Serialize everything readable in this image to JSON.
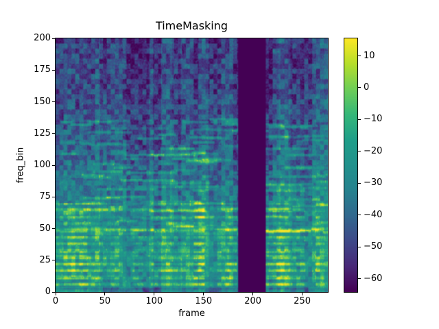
{
  "figure": {
    "title": "TimeMasking",
    "xlabel": "frame",
    "ylabel": "freq_bin",
    "background": "#ffffff"
  },
  "axes": {
    "x_ticks": [
      0,
      50,
      100,
      150,
      200,
      250
    ],
    "y_ticks": [
      0,
      25,
      50,
      75,
      100,
      125,
      150,
      175,
      200
    ],
    "x_max": 276,
    "y_max": 200
  },
  "colorbar": {
    "position": "right",
    "ticks": [
      10,
      0,
      -10,
      -20,
      -30,
      -40,
      -50,
      -60
    ],
    "vmin": -64.2,
    "vmax": 15.5,
    "colormap": "viridis",
    "stops": [
      "#440154",
      "#482878",
      "#3e4989",
      "#31688e",
      "#26828e",
      "#21918c",
      "#1f9e89",
      "#35b779",
      "#6ece58",
      "#b5de2b",
      "#fde725"
    ]
  },
  "chart_data": {
    "type": "heatmap",
    "title": "TimeMasking",
    "xlabel": "frame",
    "ylabel": "freq_bin",
    "x_range": [
      0,
      276
    ],
    "y_range": [
      0,
      200
    ],
    "value_range": [
      -64.2,
      15.5
    ],
    "colormap": "viridis",
    "grid": false,
    "colorbar_position": "right",
    "n_frames": 276,
    "n_freq": 200,
    "masked_frames": [
      185,
      213
    ],
    "mask_value": -64.2,
    "description": "Log-power audio spectrogram (dB) with a SpecAugment-style time mask: frames ~185-213 are filled with the minimum value (dark purple). Strong harmonic energy (yellow, up to ~+15 dB) appears as dashed horizontal lines below freq_bin ~60; moderate teal/green energy spans bins 60-120; bins above ~130 are mostly low energy (-40 to -60 dB, dark purple/blue) with blocky temporal structure.",
    "seed": 42,
    "base_profile": [
      [
        0,
        -36
      ],
      [
        4,
        -25
      ],
      [
        25,
        -22
      ],
      [
        55,
        -27
      ],
      [
        80,
        -34
      ],
      [
        110,
        -41
      ],
      [
        150,
        -47
      ],
      [
        200,
        -51
      ]
    ]
  }
}
